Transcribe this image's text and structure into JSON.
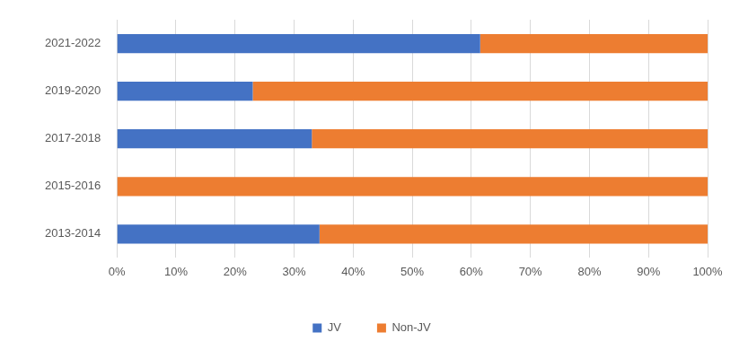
{
  "chart_data": {
    "type": "bar",
    "orientation": "horizontal",
    "stacked": true,
    "categories": [
      "2021-2022",
      "2019-2020",
      "2017-2018",
      "2015-2016",
      "2013-2014"
    ],
    "series": [
      {
        "name": "JV",
        "color": "#4472c4",
        "values": [
          61.5,
          23,
          33,
          0,
          34.3
        ]
      },
      {
        "name": "Non-JV",
        "color": "#ed7d31",
        "values": [
          38.5,
          77,
          67,
          100,
          65.7
        ]
      }
    ],
    "xlim": [
      0,
      100
    ],
    "xticks": [
      {
        "value": 0,
        "label": "0%"
      },
      {
        "value": 10,
        "label": "10%"
      },
      {
        "value": 20,
        "label": "20%"
      },
      {
        "value": 30,
        "label": "30%"
      },
      {
        "value": 40,
        "label": "40%"
      },
      {
        "value": 50,
        "label": "50%"
      },
      {
        "value": 60,
        "label": "60%"
      },
      {
        "value": 70,
        "label": "70%"
      },
      {
        "value": 80,
        "label": "80%"
      },
      {
        "value": 90,
        "label": "90%"
      },
      {
        "value": 100,
        "label": "100%"
      }
    ],
    "grid": true,
    "legend": "bottom"
  }
}
